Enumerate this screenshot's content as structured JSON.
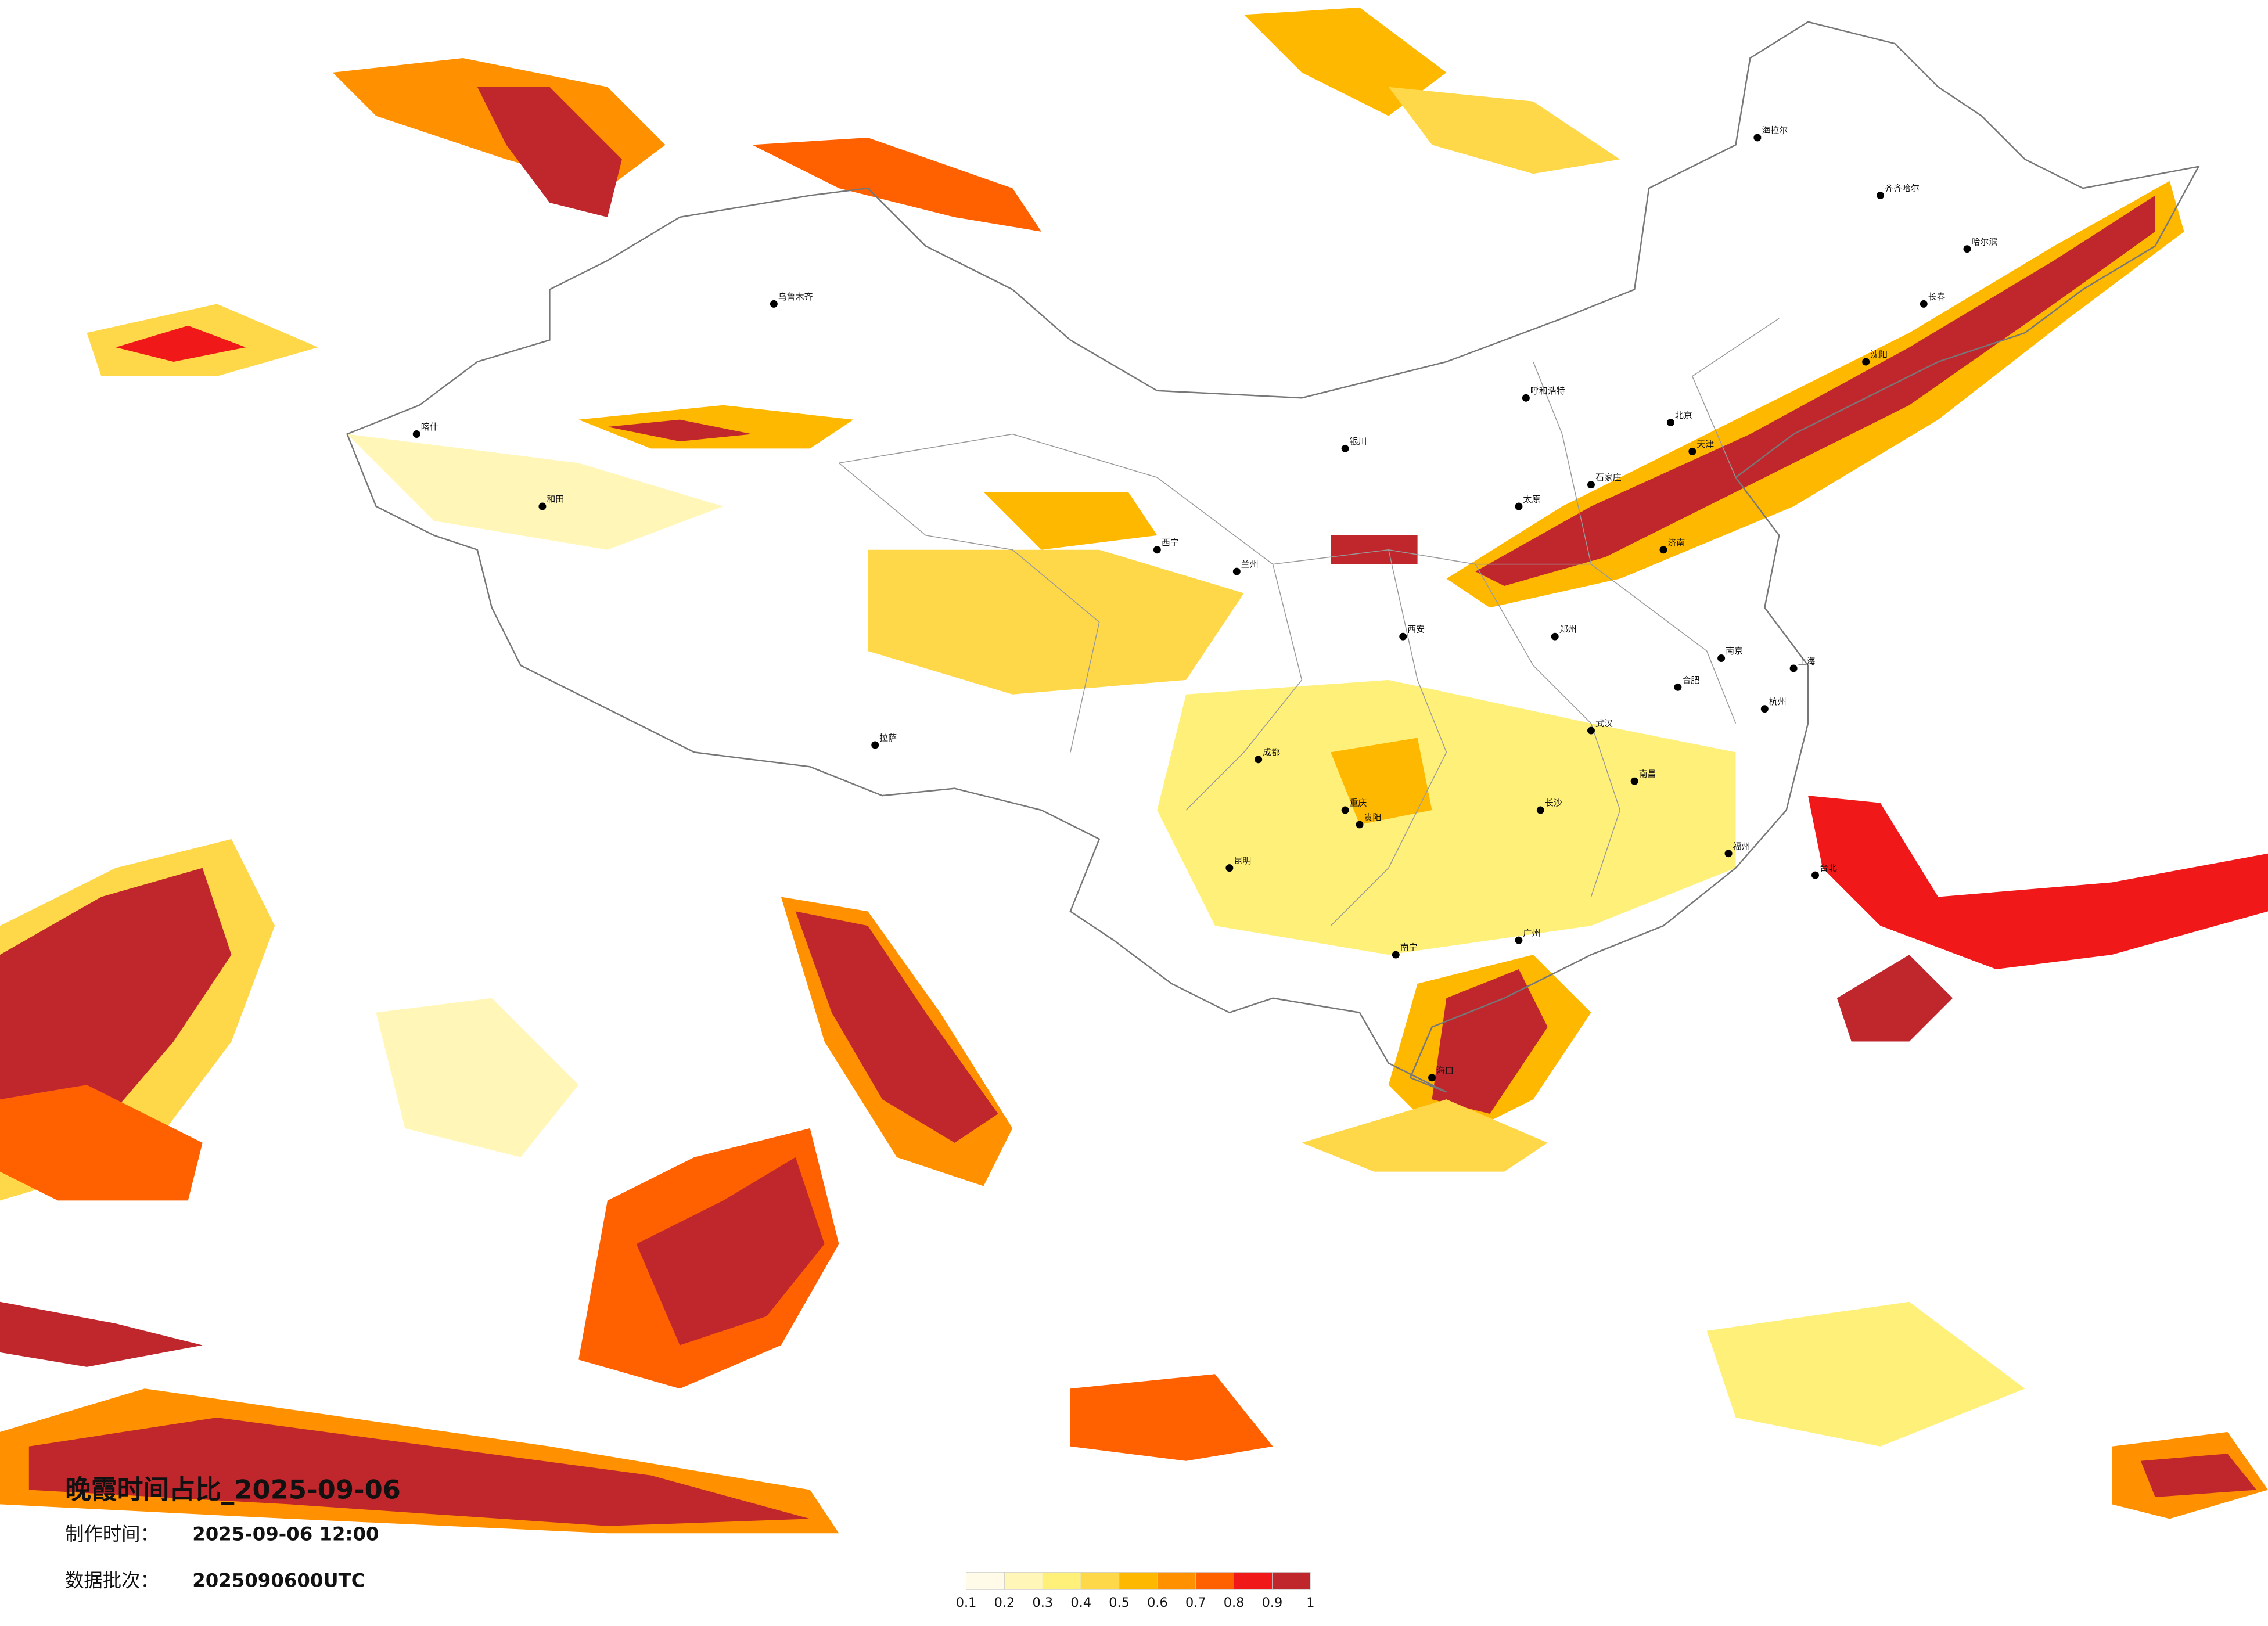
{
  "map": {
    "title": "晚霞时间占比_2025-09-06",
    "made_time": {
      "label": "制作时间：",
      "value": "2025-09-06 12:00"
    },
    "batch": {
      "label": "数据批次：",
      "value": "2025090600UTC"
    },
    "colorbar": {
      "ticks": [
        0.1,
        0.2,
        0.3,
        0.4,
        0.5,
        0.6,
        0.7,
        0.8,
        0.9,
        1
      ],
      "colors": [
        "#fffbe8",
        "#fff6b8",
        "#fff07a",
        "#ffd84a",
        "#ffb800",
        "#ff9000",
        "#ff6000",
        "#f01818",
        "#c0272d"
      ]
    },
    "cities": [
      "北京",
      "天津",
      "上海",
      "南京",
      "杭州",
      "武汉",
      "长沙",
      "广州",
      "重庆",
      "成都",
      "西安",
      "兰州",
      "西宁",
      "昆明",
      "贵阳",
      "南宁",
      "海口",
      "福州",
      "台北",
      "哈尔滨",
      "长春",
      "沈阳",
      "呼和浩特",
      "乌鲁木齐",
      "拉萨",
      "郑州",
      "济南",
      "太原",
      "石家庄",
      "合肥",
      "南昌",
      "银川",
      "喀什",
      "和田",
      "海拉尔",
      "齐齐哈尔"
    ]
  }
}
